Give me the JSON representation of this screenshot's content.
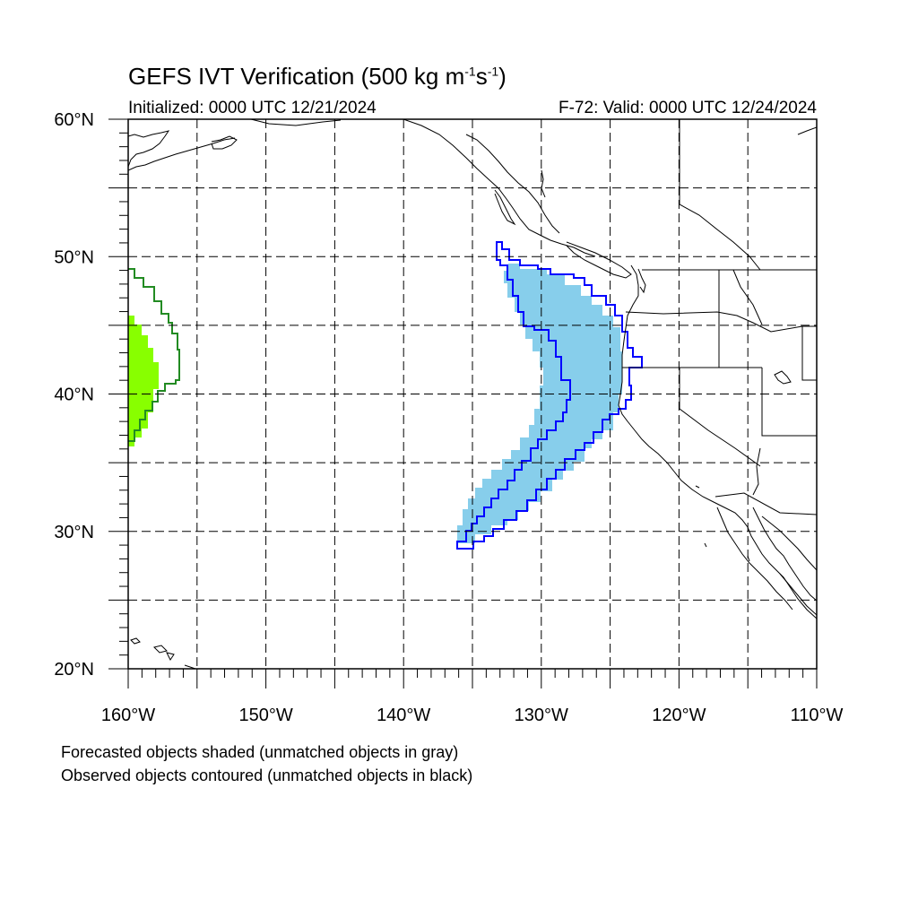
{
  "figure": {
    "title_main": "GEFS IVT Verification (500 kg m",
    "title_exp1": "-1",
    "title_mid": "s",
    "title_exp2": "-1",
    "title_end": ")",
    "initialized": "Initialized: 0000 UTC 12/21/2024",
    "valid": "F-72: Valid: 0000 UTC 12/24/2024",
    "notes": [
      "Forecasted objects shaded (unmatched objects in gray)",
      "Observed objects contoured (unmatched objects in black)"
    ]
  },
  "map": {
    "extent": {
      "lon_min": -160,
      "lon_max": -110,
      "lat_min": 20,
      "lat_max": 60
    },
    "lat_labels": [
      "20°N",
      "30°N",
      "40°N",
      "50°N",
      "60°N"
    ],
    "lon_labels": [
      "160°W",
      "150°W",
      "140°W",
      "130°W",
      "120°W",
      "110°W"
    ],
    "colors": {
      "forecast_green": "#88ff00",
      "forecast_blue": "#87ceeb",
      "observed_green": "#228b22",
      "observed_blue": "#0000ff",
      "grid": "#000000"
    }
  }
}
